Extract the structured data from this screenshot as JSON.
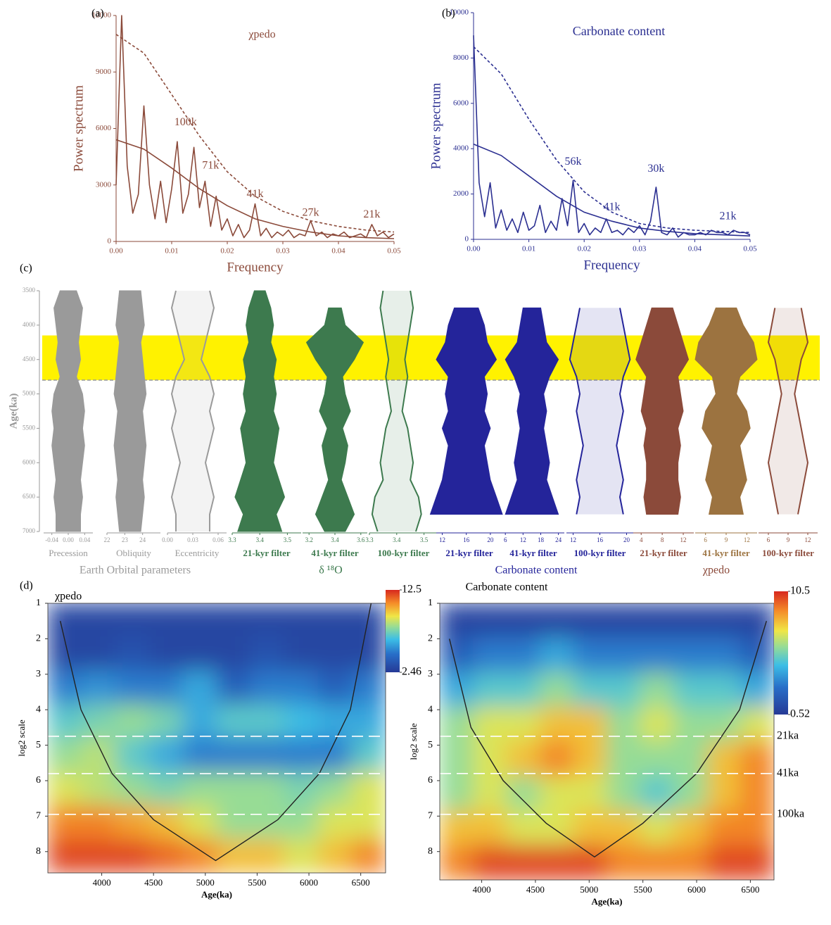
{
  "chart_data": [
    {
      "type": "line",
      "panel": "(a)",
      "title": "χpedo",
      "xlabel": "Frequency",
      "ylabel": "Power spectrum",
      "color": "#8b4a3a",
      "x": [
        0,
        0.001,
        0.002,
        0.003,
        0.004,
        0.005,
        0.006,
        0.007,
        0.008,
        0.009,
        0.01,
        0.011,
        0.012,
        0.013,
        0.014,
        0.015,
        0.016,
        0.017,
        0.018,
        0.019,
        0.02,
        0.021,
        0.022,
        0.023,
        0.024,
        0.025,
        0.026,
        0.027,
        0.028,
        0.029,
        0.03,
        0.031,
        0.032,
        0.033,
        0.034,
        0.035,
        0.036,
        0.037,
        0.038,
        0.039,
        0.04,
        0.041,
        0.042,
        0.043,
        0.044,
        0.045,
        0.046,
        0.047,
        0.048,
        0.049,
        0.05
      ],
      "values": [
        3000,
        12000,
        4000,
        1500,
        2500,
        7200,
        3000,
        1200,
        3200,
        1000,
        2800,
        5300,
        1500,
        2500,
        5000,
        1800,
        3200,
        800,
        2400,
        600,
        1200,
        300,
        900,
        200,
        600,
        2000,
        300,
        700,
        200,
        500,
        300,
        600,
        200,
        400,
        300,
        1100,
        300,
        500,
        200,
        400,
        300,
        500,
        200,
        300,
        400,
        200,
        900,
        300,
        500,
        200,
        400
      ],
      "fits": [
        {
          "style": "dashed",
          "x": [
            0,
            0.005,
            0.01,
            0.015,
            0.02,
            0.025,
            0.03,
            0.035,
            0.04,
            0.045,
            0.05
          ],
          "values": [
            11000,
            10000,
            7800,
            5600,
            3700,
            2400,
            1600,
            1100,
            800,
            600,
            500
          ]
        },
        {
          "style": "solid",
          "x": [
            0,
            0.005,
            0.01,
            0.015,
            0.02,
            0.025,
            0.03,
            0.035,
            0.04,
            0.045,
            0.05
          ],
          "values": [
            5400,
            4900,
            3900,
            2800,
            1900,
            1200,
            800,
            500,
            300,
            200,
            150
          ]
        }
      ],
      "annotations": [
        {
          "text": "100k",
          "x": 0.0125,
          "y": 6300
        },
        {
          "text": "71k",
          "x": 0.017,
          "y": 4000
        },
        {
          "text": "41k",
          "x": 0.025,
          "y": 2500
        },
        {
          "text": "27k",
          "x": 0.035,
          "y": 1500
        },
        {
          "text": "21k",
          "x": 0.046,
          "y": 1400
        }
      ],
      "xlim": [
        0,
        0.05
      ],
      "xticks": [
        {
          "value": 0,
          "label": "0.00"
        },
        0.01,
        0.02,
        0.03,
        0.04,
        0.05
      ],
      "ylim": [
        0,
        12000
      ],
      "yticks": [
        0,
        3000,
        6000,
        9000,
        12000
      ]
    },
    {
      "type": "line",
      "panel": "(b)",
      "title": "Carbonate content",
      "xlabel": "Frequency",
      "ylabel": "Power spectrum",
      "color": "#2b2f91",
      "x": [
        0,
        0.001,
        0.002,
        0.003,
        0.004,
        0.005,
        0.006,
        0.007,
        0.008,
        0.009,
        0.01,
        0.011,
        0.012,
        0.013,
        0.014,
        0.015,
        0.016,
        0.017,
        0.018,
        0.019,
        0.02,
        0.021,
        0.022,
        0.023,
        0.024,
        0.025,
        0.026,
        0.027,
        0.028,
        0.029,
        0.03,
        0.031,
        0.032,
        0.033,
        0.034,
        0.035,
        0.036,
        0.037,
        0.038,
        0.039,
        0.04,
        0.041,
        0.042,
        0.043,
        0.044,
        0.045,
        0.046,
        0.047,
        0.048,
        0.049,
        0.05
      ],
      "values": [
        9000,
        2500,
        1000,
        2500,
        500,
        1300,
        400,
        900,
        300,
        1200,
        400,
        600,
        1500,
        300,
        800,
        400,
        1800,
        600,
        2600,
        300,
        700,
        200,
        500,
        300,
        900,
        300,
        400,
        200,
        500,
        300,
        600,
        200,
        800,
        2300,
        300,
        200,
        500,
        100,
        300,
        200,
        200,
        300,
        200,
        400,
        300,
        300,
        200,
        400,
        300,
        300,
        200
      ],
      "fits": [
        {
          "style": "dashed",
          "x": [
            0,
            0.005,
            0.01,
            0.015,
            0.02,
            0.025,
            0.03,
            0.035,
            0.04,
            0.045,
            0.05
          ],
          "values": [
            8500,
            7300,
            5300,
            3500,
            2100,
            1200,
            700,
            500,
            400,
            350,
            300
          ]
        },
        {
          "style": "solid",
          "x": [
            0,
            0.005,
            0.01,
            0.015,
            0.02,
            0.025,
            0.03,
            0.035,
            0.04,
            0.045,
            0.05
          ],
          "values": [
            4200,
            3700,
            2800,
            1900,
            1200,
            800,
            500,
            350,
            250,
            200,
            150
          ]
        }
      ],
      "annotations": [
        {
          "text": "56k",
          "x": 0.018,
          "y": 3400
        },
        {
          "text": "41k",
          "x": 0.025,
          "y": 1400
        },
        {
          "text": "30k",
          "x": 0.033,
          "y": 3100
        },
        {
          "text": "21k",
          "x": 0.046,
          "y": 1000
        }
      ],
      "xlim": [
        0,
        0.05
      ],
      "xticks": [
        {
          "value": 0,
          "label": "0.00"
        },
        0.01,
        0.02,
        0.03,
        0.04,
        0.05
      ],
      "ylim": [
        0,
        10000
      ],
      "yticks": [
        0,
        2000,
        4000,
        6000,
        8000,
        10000
      ]
    },
    {
      "type": "filter",
      "panel": "(c)",
      "ylabel": "Age(ka)",
      "ylim": [
        3500,
        7000
      ],
      "yticks": [
        3500,
        4000,
        4500,
        5000,
        5500,
        6000,
        6500,
        7000
      ],
      "highlight": [
        4150,
        4800
      ],
      "ages": [
        3500,
        3750,
        4000,
        4250,
        4500,
        4750,
        5000,
        5250,
        5500,
        5750,
        6000,
        6250,
        6500,
        6750,
        7000
      ],
      "columns": [
        {
          "label": "Precession",
          "color": "#9a9a9a",
          "style": "fill",
          "center": 0,
          "xlim": [
            -0.06,
            0.06
          ],
          "xticks": [
            -0.04,
            {
              "value": 0,
              "label": "0.00"
            },
            0.04
          ],
          "amplitude": [
            0.02,
            0.035,
            0.03,
            0.025,
            0.03,
            0.02,
            0.035,
            0.04,
            0.035,
            0.04,
            0.035,
            0.03,
            0.035,
            0.03,
            0.03
          ]
        },
        {
          "label": "Obliquity",
          "color": "#9a9a9a",
          "style": "fill",
          "center": 23.3,
          "xlim": [
            22,
            25
          ],
          "xticks": [
            22,
            23,
            24
          ],
          "amplitude": [
            0.6,
            0.7,
            0.8,
            0.6,
            0.7,
            0.8,
            0.9,
            0.7,
            0.8,
            0.9,
            0.8,
            0.7,
            0.8,
            0.7,
            0.6
          ]
        },
        {
          "label": "Eccentricity",
          "color": "#9a9a9a",
          "style": "outline",
          "center": 0.03,
          "xlim": [
            0,
            0.07
          ],
          "xticks": [
            {
              "value": 0,
              "label": "0.00"
            },
            0.03,
            0.06
          ],
          "amplitude": [
            0.02,
            0.025,
            0.02,
            0.015,
            0.01,
            0.02,
            0.025,
            0.02,
            0.025,
            0.02,
            0.015,
            0.02,
            0.025,
            0.02,
            0.02
          ]
        },
        {
          "label": "21-kyr filter",
          "color": "#3d7a4e",
          "style": "fill",
          "center": 3.4,
          "xlim": [
            3.3,
            3.55
          ],
          "xticks": [
            3.3,
            3.4,
            3.5
          ],
          "amplitude": [
            0.02,
            0.04,
            0.05,
            0.04,
            0.06,
            0.05,
            0.06,
            0.05,
            0.07,
            0.06,
            0.05,
            0.07,
            0.09,
            0.06,
            0.08
          ]
        },
        {
          "label": "41-kyr filter",
          "color": "#3d7a4e",
          "style": "fill",
          "center": 3.4,
          "xlim": [
            3.15,
            3.65
          ],
          "xticks": [
            3.2,
            3.4,
            3.6
          ],
          "amplitude": [
            null,
            0.05,
            0.08,
            0.22,
            0.15,
            0.06,
            0.08,
            0.12,
            0.06,
            0.1,
            0.08,
            0.05,
            0.1,
            0.15,
            0.08
          ]
        },
        {
          "label": "100-kyr filter",
          "color": "#3d7a4e",
          "style": "outline",
          "center": 3.4,
          "xlim": [
            3.3,
            3.55
          ],
          "xticks": [
            3.3,
            3.4,
            3.5
          ],
          "amplitude": [
            0.05,
            0.06,
            0.05,
            0.04,
            0.03,
            0.04,
            0.03,
            0.02,
            0.04,
            0.05,
            0.06,
            0.05,
            0.08,
            0.09,
            0.07
          ]
        },
        {
          "label": "21-kyr filter",
          "color": "#24249a",
          "style": "fill",
          "center": 16,
          "xlim": [
            11,
            22
          ],
          "xticks": [
            12,
            16,
            20
          ],
          "amplitude": [
            null,
            2,
            3,
            3.5,
            5,
            3,
            3.5,
            3,
            4,
            3,
            3.5,
            4,
            5,
            6,
            null
          ]
        },
        {
          "label": "41-kyr filter",
          "color": "#24249a",
          "style": "fill",
          "center": 15,
          "xlim": [
            5,
            26
          ],
          "xticks": [
            6,
            12,
            18,
            24
          ],
          "amplitude": [
            null,
            3,
            4,
            5,
            9,
            6,
            4,
            5,
            4,
            5,
            6,
            5,
            7,
            9,
            null
          ]
        },
        {
          "label": "100-kyr filter",
          "color": "#24249a",
          "style": "outline",
          "center": 16,
          "xlim": [
            11,
            21
          ],
          "xticks": [
            12,
            16,
            20
          ],
          "amplitude": [
            null,
            3,
            3.5,
            4,
            4.5,
            3.5,
            3,
            3.5,
            3,
            2.5,
            3,
            3.5,
            3,
            3.5,
            null
          ]
        },
        {
          "label": "21-kyr filter",
          "color": "#8b4a3a",
          "style": "fill",
          "center": 8,
          "xlim": [
            2.5,
            14
          ],
          "xticks": [
            4,
            8,
            12
          ],
          "amplitude": [
            null,
            2,
            3,
            4,
            5,
            3,
            3.5,
            4,
            3,
            3.5,
            3,
            3,
            3.5,
            3,
            null
          ]
        },
        {
          "label": "41-kyr filter",
          "color": "#9c7340",
          "style": "fill",
          "center": 9,
          "xlim": [
            4.5,
            13.5
          ],
          "xticks": [
            6,
            9,
            12
          ],
          "amplitude": [
            null,
            1.5,
            2.5,
            4,
            4.5,
            2,
            1.5,
            3,
            3.5,
            2,
            2.5,
            3,
            2,
            2.5,
            null
          ]
        },
        {
          "label": "100-kyr filter",
          "color": "#8b4a3a",
          "style": "outline",
          "center": 9,
          "xlim": [
            4.5,
            13.5
          ],
          "xticks": [
            6,
            9,
            12
          ],
          "amplitude": [
            null,
            2,
            2.5,
            3,
            2,
            1.5,
            1,
            1.5,
            2,
            2.5,
            3,
            2.5,
            2,
            1.5,
            null
          ]
        }
      ],
      "groups": [
        {
          "label": "Earth Orbital parameters",
          "color": "#9a9a9a"
        },
        {
          "label": "δ ¹⁸O",
          "color": "#3d7a4e"
        },
        {
          "label": "Carbonate content",
          "color": "#24249a"
        },
        {
          "label": "χpedo",
          "color": "#8b4a3a"
        }
      ]
    },
    {
      "type": "wavelet",
      "panel": "(d)",
      "title": "χpedo",
      "xlabel": "Age(ka)",
      "ylabel": "log2 scale",
      "xlim": [
        3480,
        6740
      ],
      "xticks": [
        4000,
        4500,
        5000,
        5500,
        6000,
        6500
      ],
      "ylim": [
        1,
        8.6
      ],
      "yticks": [
        1,
        2,
        3,
        4,
        5,
        6,
        7,
        8
      ],
      "zlim": [
        2.46,
        12.5
      ],
      "zticks": [
        2.46,
        12.5
      ],
      "power": [
        [
          3,
          3,
          3,
          3,
          3,
          3,
          3,
          3,
          3,
          3
        ],
        [
          3,
          3,
          3.5,
          3,
          3,
          3,
          3.5,
          3,
          3,
          3
        ],
        [
          5,
          5.5,
          5,
          5,
          6,
          4,
          5,
          5,
          4,
          5
        ],
        [
          7,
          7.5,
          8,
          7.5,
          6,
          7,
          7,
          6.5,
          6,
          6
        ],
        [
          8,
          8.5,
          7,
          6,
          5,
          5,
          5,
          5,
          5,
          7
        ],
        [
          9,
          8.5,
          8,
          7.5,
          8,
          8,
          8,
          7.5,
          8,
          9
        ],
        [
          11,
          11,
          10.5,
          10,
          9,
          8,
          8,
          8,
          9,
          9
        ],
        [
          12,
          12,
          12,
          11.5,
          11,
          10,
          10,
          9,
          10,
          11
        ]
      ],
      "coi": {
        "x": [
          3600,
          3800,
          4100,
          4500,
          5100,
          5700,
          6100,
          6400,
          6600
        ],
        "y": [
          1.5,
          4,
          5.8,
          7.1,
          8.25,
          7.1,
          5.8,
          4,
          1
        ]
      },
      "hlines": [
        4.75,
        5.8,
        6.95
      ]
    },
    {
      "type": "wavelet",
      "title": "Carbonate content",
      "xlabel": "Age(ka)",
      "ylabel": "log2 scale",
      "xlim": [
        3610,
        6720
      ],
      "xticks": [
        4000,
        4500,
        5000,
        5500,
        6000,
        6500
      ],
      "ylim": [
        1,
        8.8
      ],
      "yticks": [
        1,
        2,
        3,
        4,
        5,
        6,
        7,
        8
      ],
      "zlim": [
        0.52,
        10.5
      ],
      "zticks": [
        0.52,
        10.5
      ],
      "power": [
        [
          1,
          1,
          1,
          1,
          1,
          1,
          1,
          1,
          1,
          1
        ],
        [
          2,
          3,
          3,
          4,
          3,
          3,
          3,
          3,
          3,
          2
        ],
        [
          4,
          5,
          5,
          6,
          5,
          5,
          6,
          5,
          5,
          4
        ],
        [
          6,
          7,
          7,
          8,
          8,
          6,
          7,
          6,
          6,
          7
        ],
        [
          6,
          7,
          8,
          9,
          8,
          6,
          6,
          6,
          8,
          9
        ],
        [
          6,
          7,
          6,
          7,
          7,
          6,
          5,
          6,
          8,
          9
        ],
        [
          8,
          8,
          7,
          7,
          8,
          8,
          7,
          8,
          9,
          9
        ],
        [
          9,
          10,
          10,
          10,
          10,
          9,
          9,
          9,
          10,
          10
        ]
      ],
      "coi": {
        "x": [
          3700,
          3900,
          4200,
          4600,
          5050,
          5500,
          6000,
          6400,
          6650
        ],
        "y": [
          2,
          4.5,
          6,
          7.2,
          8.15,
          7.2,
          5.8,
          4,
          1.5
        ]
      },
      "hlines": [
        4.75,
        5.8,
        6.95
      ],
      "hline_labels": [
        "21ka",
        "41ka",
        "100ka"
      ]
    }
  ]
}
